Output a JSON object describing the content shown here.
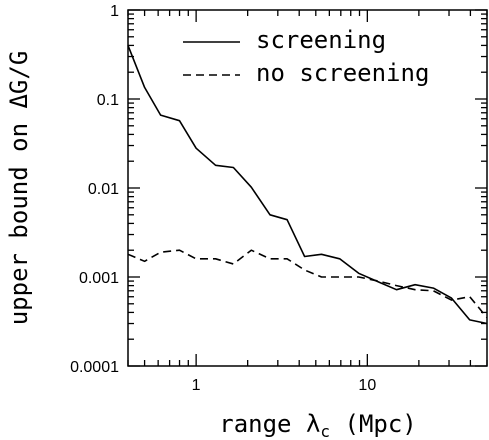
{
  "chart_data": {
    "type": "line",
    "xlabel": "range λ",
    "xlabel_sub": "c",
    "xlabel_unit": " (Mpc)",
    "ylabel": "upper bound on ΔG/G",
    "xscale": "log",
    "yscale": "log",
    "xlim": [
      0.4,
      50
    ],
    "ylim": [
      0.0001,
      1
    ],
    "xticks": [
      {
        "value": 1,
        "label": "1"
      },
      {
        "value": 10,
        "label": "10"
      }
    ],
    "yticks": [
      {
        "value": 0.0001,
        "label": "0.0001"
      },
      {
        "value": 0.001,
        "label": "0.001"
      },
      {
        "value": 0.01,
        "label": "0.01"
      },
      {
        "value": 0.1,
        "label": "0.1"
      },
      {
        "value": 1,
        "label": "1"
      }
    ],
    "legend": "top-right",
    "series": [
      {
        "name": "screening",
        "style": "solid",
        "x": [
          0.4,
          0.5,
          0.62,
          0.8,
          1.0,
          1.3,
          1.65,
          2.1,
          2.7,
          3.4,
          4.3,
          5.4,
          6.9,
          8.9,
          11.6,
          14.8,
          19.0,
          24.3,
          31.0,
          39.6,
          50
        ],
        "y": [
          0.4,
          0.135,
          0.066,
          0.057,
          0.028,
          0.018,
          0.017,
          0.0102,
          0.005,
          0.0044,
          0.0017,
          0.0018,
          0.0016,
          0.0011,
          0.00088,
          0.00072,
          0.00082,
          0.00075,
          0.00058,
          0.00033,
          0.0003
        ]
      },
      {
        "name": "no screening",
        "style": "dashed",
        "x": [
          0.4,
          0.5,
          0.62,
          0.8,
          1.0,
          1.3,
          1.65,
          2.1,
          2.7,
          3.4,
          4.3,
          5.4,
          6.9,
          8.9,
          11.6,
          14.8,
          19.0,
          24.3,
          31.0,
          39.6,
          50
        ],
        "y": [
          0.0018,
          0.0015,
          0.0019,
          0.002,
          0.0016,
          0.0016,
          0.0014,
          0.002,
          0.0016,
          0.0016,
          0.0012,
          0.001,
          0.001,
          0.001,
          0.0009,
          0.0008,
          0.00072,
          0.0007,
          0.00055,
          0.0006,
          0.00035
        ]
      }
    ]
  }
}
